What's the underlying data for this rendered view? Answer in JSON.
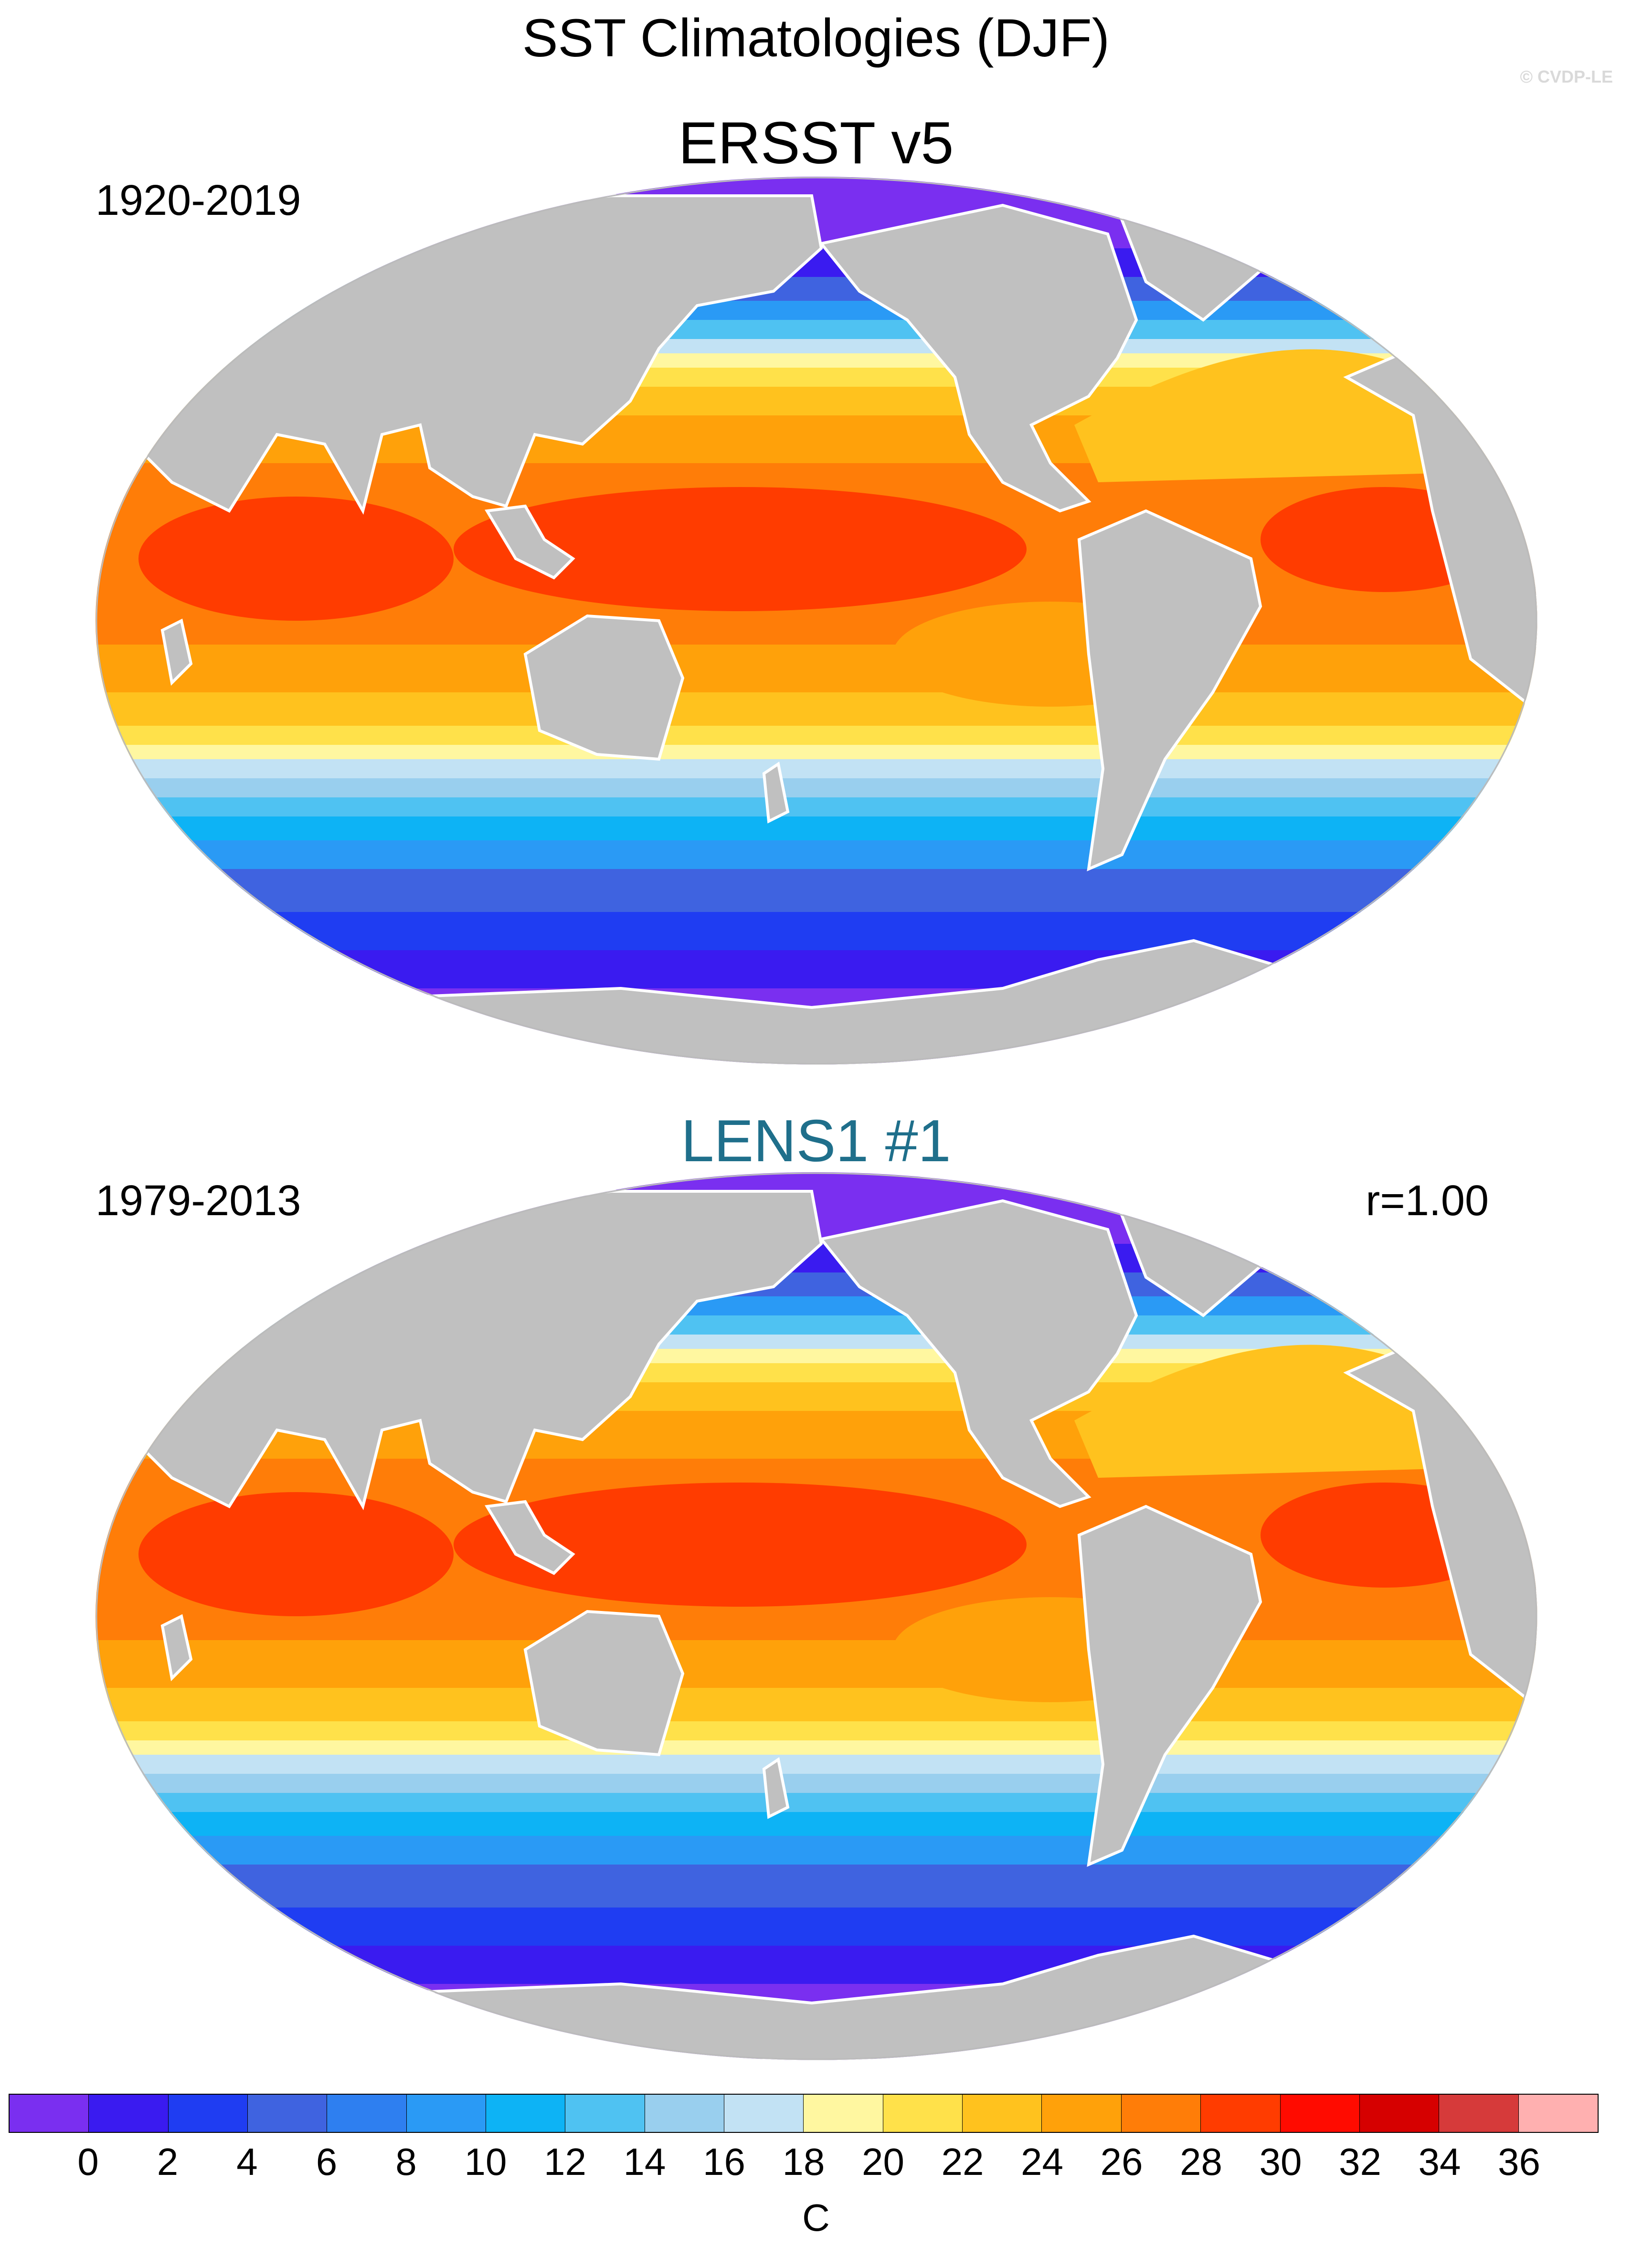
{
  "title": "SST Climatologies (DJF)",
  "credit": "© CVDP-LE",
  "panels": [
    {
      "title": "ERSST v5",
      "title_color": "#000000",
      "period": "1920-2019",
      "stat": ""
    },
    {
      "title": "LENS1 #1",
      "title_color": "#1f6f8b",
      "period": "1979-2013",
      "stat": "r=1.00"
    }
  ],
  "colorbar": {
    "colors": [
      "#7a2ff0",
      "#3a1bf0",
      "#1f3df2",
      "#3f63e0",
      "#2e7ff0",
      "#2a9af5",
      "#0db3f5",
      "#4fc2f2",
      "#99cfee",
      "#c2e2f4",
      "#fff7a0",
      "#ffe14a",
      "#ffc21e",
      "#ffa10a",
      "#ff7d08",
      "#ff3c00",
      "#ff0b00",
      "#d60000",
      "#d63a3a",
      "#ffb0b0"
    ],
    "ticks": [
      "0",
      "2",
      "4",
      "6",
      "8",
      "10",
      "12",
      "14",
      "16",
      "18",
      "20",
      "22",
      "24",
      "26",
      "28",
      "30",
      "32",
      "34",
      "36"
    ],
    "units": "C"
  },
  "colors": {
    "land": "#c0c0c0",
    "coast": "#ffffff"
  }
}
